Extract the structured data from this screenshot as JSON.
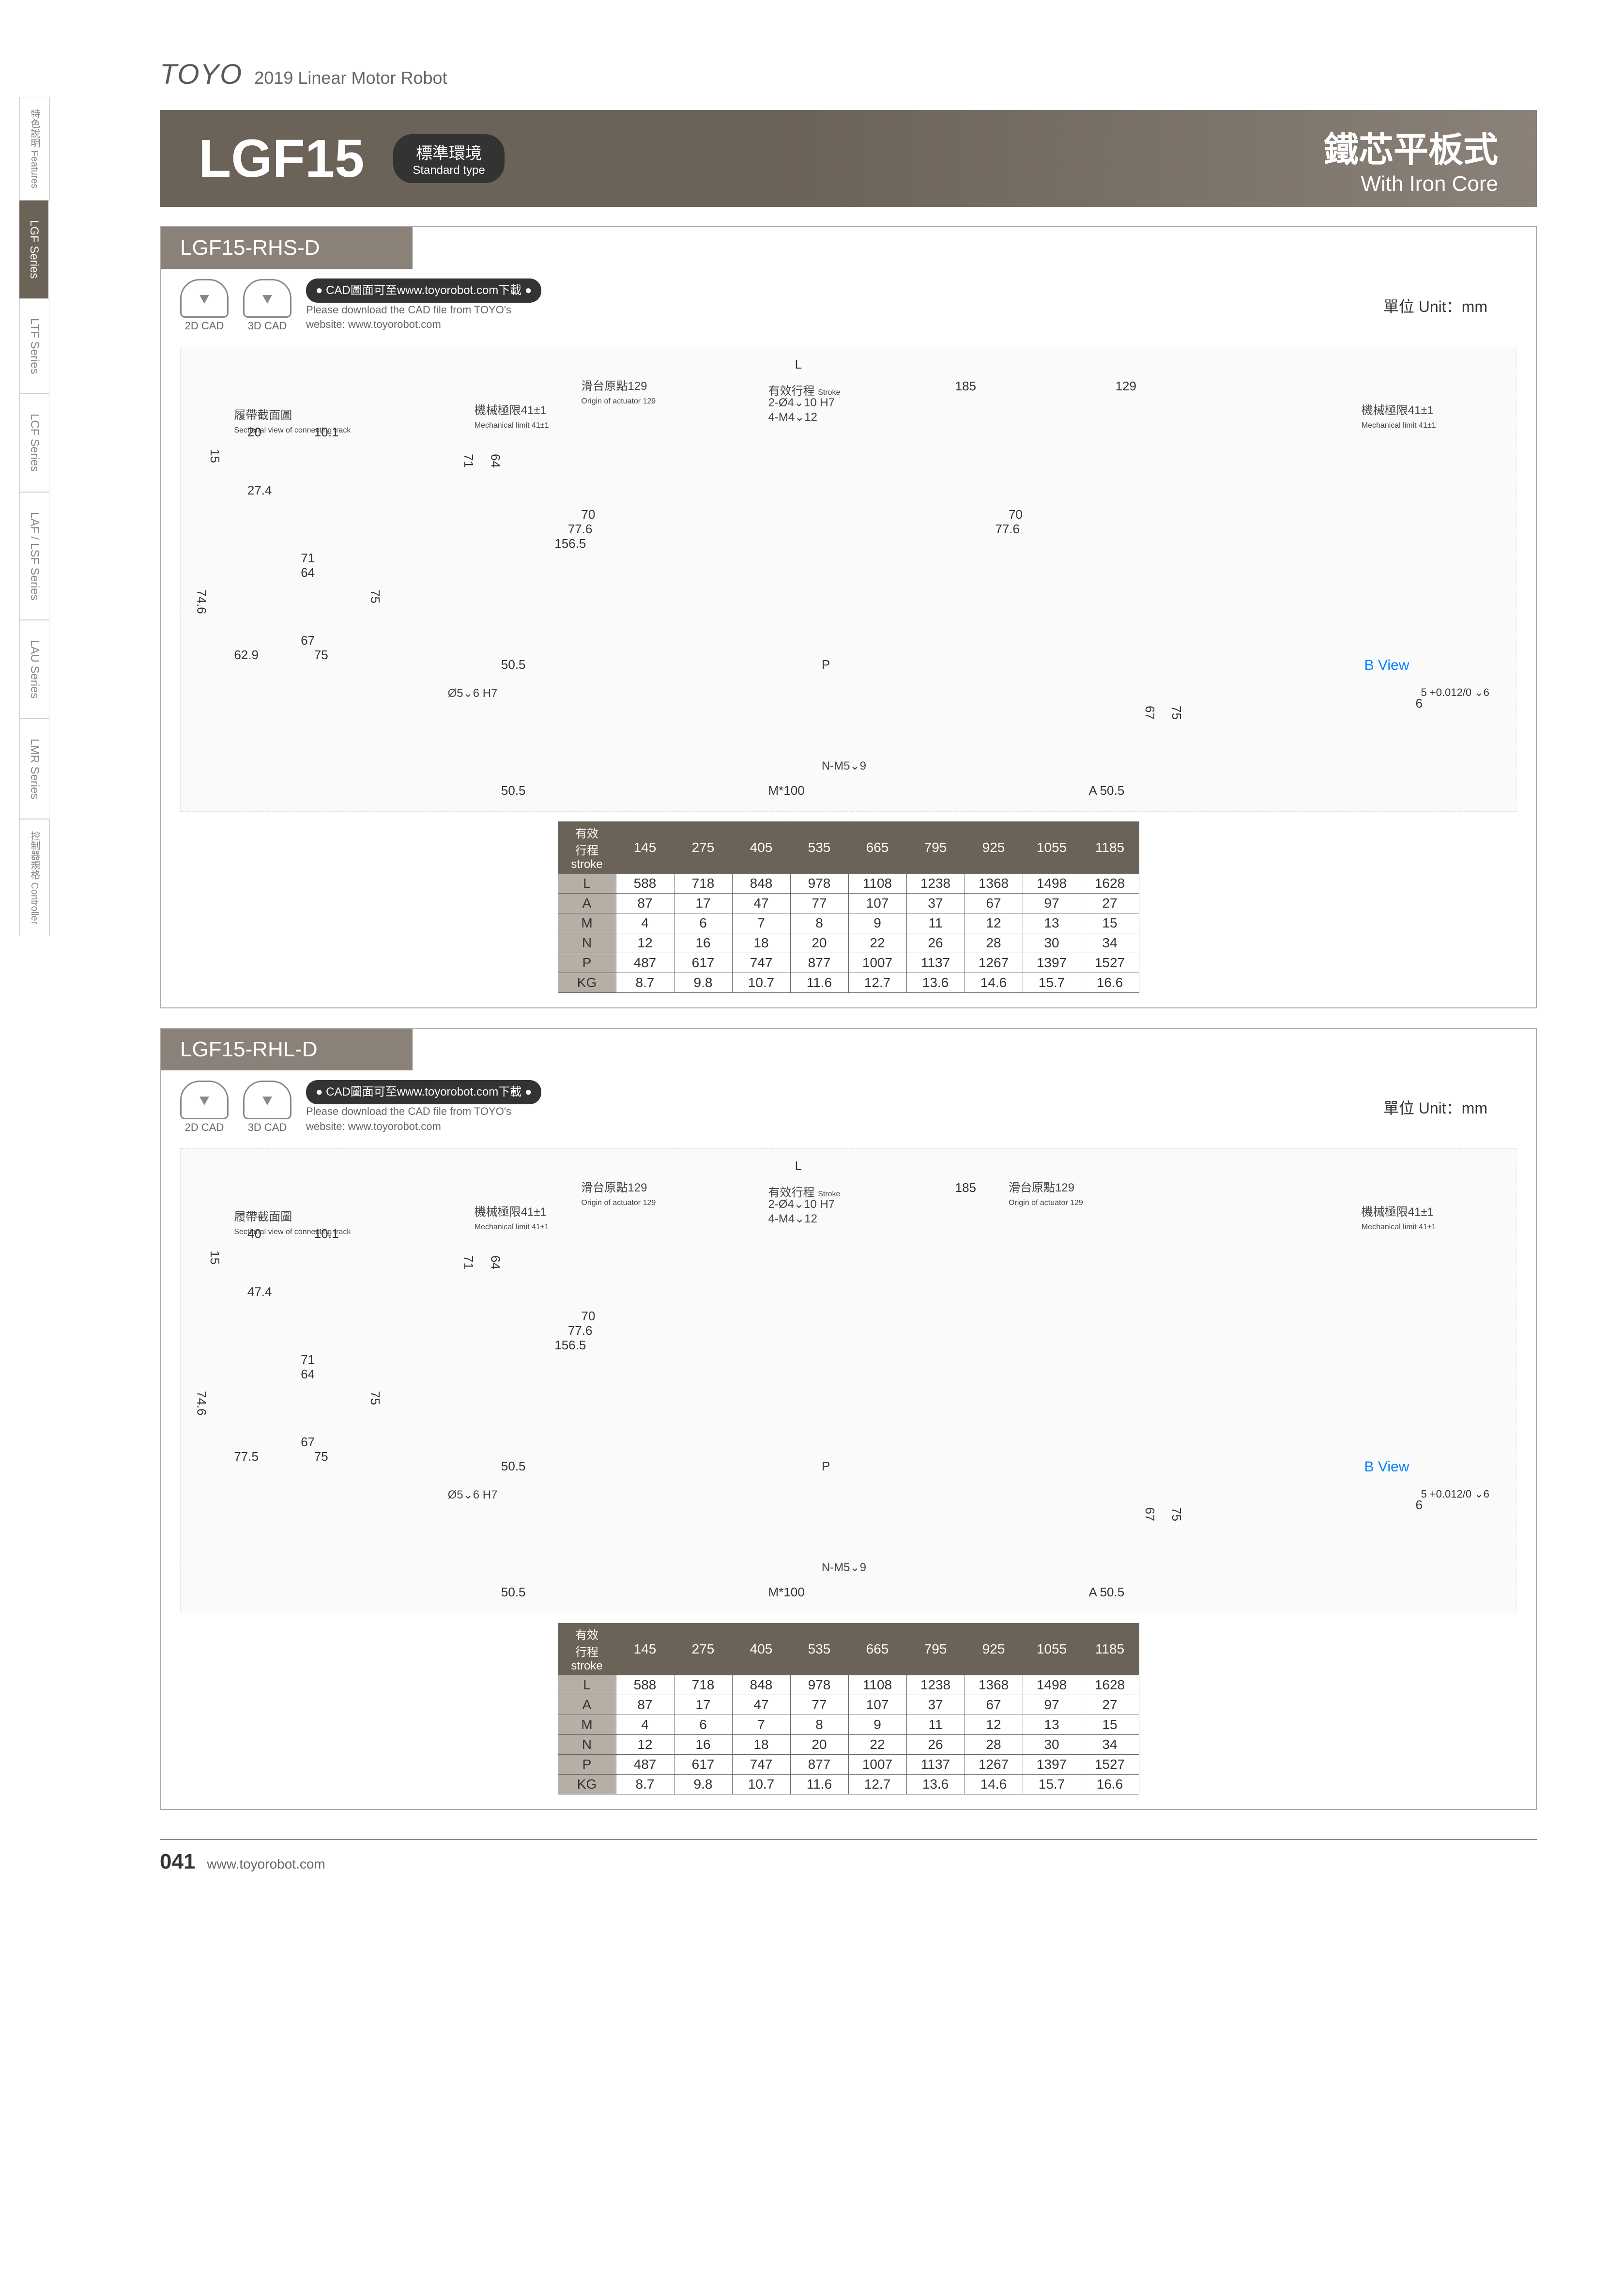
{
  "header": {
    "brand": "TOYO",
    "subtitle": "2019  Linear Motor Robot"
  },
  "sidebar": {
    "tabs": [
      {
        "label": "特色說明\nFeatures",
        "small": true
      },
      {
        "label": "LGF Series",
        "active": true
      },
      {
        "label": "LTF Series"
      },
      {
        "label": "LCF Series"
      },
      {
        "label": "LAF / LSF Series"
      },
      {
        "label": "LAU Series"
      },
      {
        "label": "LMR Series"
      },
      {
        "label": "控制器規格\nController",
        "small": true
      }
    ]
  },
  "title": {
    "model": "LGF15",
    "type_cn": "標準環境",
    "type_en": "Standard type",
    "right_cn": "鐵芯平板式",
    "right_en": "With Iron Core"
  },
  "cad": {
    "icon2d": "2D CAD",
    "icon3d": "3D CAD",
    "bubble": "● CAD圖面可至www.toyorobot.com下載 ●",
    "note1": "Please download the CAD file from TOYO's",
    "note2": "website: www.toyorobot.com",
    "unit": "單位 Unit：mm"
  },
  "blocks": [
    {
      "name": "LGF15-RHS-D",
      "drawing": {
        "sect_cn": "履帶截面圖",
        "sect_en": "Sectional view of connecting track",
        "origin_cn": "滑台原點129",
        "origin_en": "Origin of actuator 129",
        "stroke_cn": "有效行程",
        "stroke_en": "Stroke",
        "mlimit_cn": "機械極限41±1",
        "mlimit_en": "Mechanical limit 41±1",
        "hole1": "2-Ø4⌄10 H7",
        "hole2": "4-M4⌄12",
        "d_185": "185",
        "d_129": "129",
        "d_L": "L",
        "d_20": "20",
        "d_10_1": "10.1",
        "d_15": "15",
        "d_27_4": "27.4",
        "d_71": "71",
        "d_64": "64",
        "d_70": "70",
        "d_77_6": "77.6",
        "d_156_5": "156.5",
        "d_74_6": "74.6",
        "d_75": "75",
        "d_67": "67",
        "d_62_9": "62.9",
        "d_50_5": "50.5",
        "d_P": "P",
        "d_M100": "M*100",
        "d_A50_5": "A 50.5",
        "hole3": "Ø5⌄6 H7",
        "hole4": "N-M5⌄9",
        "bview": "B View",
        "tol": "5 +0.012/0 ⌄6",
        "d_6": "6"
      }
    },
    {
      "name": "LGF15-RHL-D",
      "drawing": {
        "sect_cn": "履帶截面圖",
        "sect_en": "Sectional view of connecting track",
        "origin_cn": "滑台原點129",
        "origin_en": "Origin of actuator 129",
        "origin2_cn": "滑台原點129",
        "origin2_en": "Origin of actuator 129",
        "stroke_cn": "有效行程",
        "stroke_en": "Stroke",
        "mlimit_cn": "機械極限41±1",
        "mlimit_en": "Mechanical limit 41±1",
        "hole1": "2-Ø4⌄10 H7",
        "hole2": "4-M4⌄12",
        "d_185": "185",
        "d_L": "L",
        "d_40": "40",
        "d_10_1": "10.1",
        "d_15": "15",
        "d_47_4": "47.4",
        "d_71": "71",
        "d_64": "64",
        "d_70": "70",
        "d_77_6": "77.6",
        "d_156_5": "156.5",
        "d_74_6": "74.6",
        "d_75": "75",
        "d_67": "67",
        "d_77_5": "77.5",
        "d_50_5": "50.5",
        "d_P": "P",
        "d_M100": "M*100",
        "d_A50_5": "A 50.5",
        "hole3": "Ø5⌄6 H7",
        "hole4": "N-M5⌄9",
        "bview": "B View",
        "tol": "5 +0.012/0 ⌄6",
        "d_6": "6"
      }
    }
  ],
  "table": {
    "stroke_hdr_cn": "有效行程",
    "stroke_hdr_en": "stroke",
    "cols": [
      "145",
      "275",
      "405",
      "535",
      "665",
      "795",
      "925",
      "1055",
      "1185"
    ],
    "rows": [
      {
        "label": "L",
        "vals": [
          "588",
          "718",
          "848",
          "978",
          "1108",
          "1238",
          "1368",
          "1498",
          "1628"
        ]
      },
      {
        "label": "A",
        "vals": [
          "87",
          "17",
          "47",
          "77",
          "107",
          "37",
          "67",
          "97",
          "27"
        ]
      },
      {
        "label": "M",
        "vals": [
          "4",
          "6",
          "7",
          "8",
          "9",
          "11",
          "12",
          "13",
          "15"
        ]
      },
      {
        "label": "N",
        "vals": [
          "12",
          "16",
          "18",
          "20",
          "22",
          "26",
          "28",
          "30",
          "34"
        ]
      },
      {
        "label": "P",
        "vals": [
          "487",
          "617",
          "747",
          "877",
          "1007",
          "1137",
          "1267",
          "1397",
          "1527"
        ]
      },
      {
        "label": "KG",
        "vals": [
          "8.7",
          "9.8",
          "10.7",
          "11.6",
          "12.7",
          "13.6",
          "14.6",
          "15.7",
          "16.6"
        ]
      }
    ]
  },
  "footer": {
    "page": "041",
    "url": "www.toyorobot.com"
  }
}
